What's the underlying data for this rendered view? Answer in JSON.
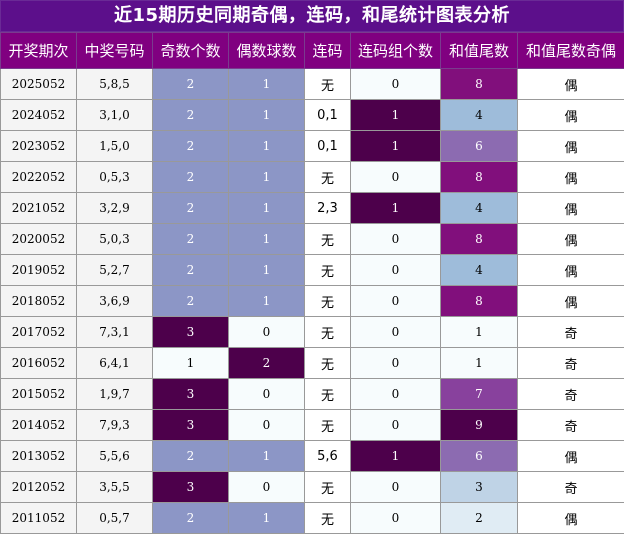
{
  "title": "近15期历史同期奇偶，连码，和尾统计图表分析",
  "headers": [
    "开奖期次",
    "中奖号码",
    "奇数个数",
    "偶数球数",
    "连码",
    "连码组个数",
    "和值尾数",
    "和值尾数奇偶"
  ],
  "rows": [
    {
      "period": "2025052",
      "numbers": "5,8,5",
      "odd": "2",
      "even": "1",
      "consec": "无",
      "groups": "0",
      "tail": "8",
      "parity": "偶"
    },
    {
      "period": "2024052",
      "numbers": "3,1,0",
      "odd": "2",
      "even": "1",
      "consec": "0,1",
      "groups": "1",
      "tail": "4",
      "parity": "偶"
    },
    {
      "period": "2023052",
      "numbers": "1,5,0",
      "odd": "2",
      "even": "1",
      "consec": "0,1",
      "groups": "1",
      "tail": "6",
      "parity": "偶"
    },
    {
      "period": "2022052",
      "numbers": "0,5,3",
      "odd": "2",
      "even": "1",
      "consec": "无",
      "groups": "0",
      "tail": "8",
      "parity": "偶"
    },
    {
      "period": "2021052",
      "numbers": "3,2,9",
      "odd": "2",
      "even": "1",
      "consec": "2,3",
      "groups": "1",
      "tail": "4",
      "parity": "偶"
    },
    {
      "period": "2020052",
      "numbers": "5,0,3",
      "odd": "2",
      "even": "1",
      "consec": "无",
      "groups": "0",
      "tail": "8",
      "parity": "偶"
    },
    {
      "period": "2019052",
      "numbers": "5,2,7",
      "odd": "2",
      "even": "1",
      "consec": "无",
      "groups": "0",
      "tail": "4",
      "parity": "偶"
    },
    {
      "period": "2018052",
      "numbers": "3,6,9",
      "odd": "2",
      "even": "1",
      "consec": "无",
      "groups": "0",
      "tail": "8",
      "parity": "偶"
    },
    {
      "period": "2017052",
      "numbers": "7,3,1",
      "odd": "3",
      "even": "0",
      "consec": "无",
      "groups": "0",
      "tail": "1",
      "parity": "奇"
    },
    {
      "period": "2016052",
      "numbers": "6,4,1",
      "odd": "1",
      "even": "2",
      "consec": "无",
      "groups": "0",
      "tail": "1",
      "parity": "奇"
    },
    {
      "period": "2015052",
      "numbers": "1,9,7",
      "odd": "3",
      "even": "0",
      "consec": "无",
      "groups": "0",
      "tail": "7",
      "parity": "奇"
    },
    {
      "period": "2014052",
      "numbers": "7,9,3",
      "odd": "3",
      "even": "0",
      "consec": "无",
      "groups": "0",
      "tail": "9",
      "parity": "奇"
    },
    {
      "period": "2013052",
      "numbers": "5,5,6",
      "odd": "2",
      "even": "1",
      "consec": "5,6",
      "groups": "1",
      "tail": "6",
      "parity": "偶"
    },
    {
      "period": "2012052",
      "numbers": "3,5,5",
      "odd": "3",
      "even": "0",
      "consec": "无",
      "groups": "0",
      "tail": "3",
      "parity": "奇"
    },
    {
      "period": "2011052",
      "numbers": "0,5,7",
      "odd": "2",
      "even": "1",
      "consec": "无",
      "groups": "0",
      "tail": "2",
      "parity": "偶"
    }
  ],
  "colors": {
    "header_bg": "#800080",
    "title_bg": "#5c0f8b",
    "count_mid": "#8c96c6",
    "count_dark": "#4d004b",
    "count_light": "#f7fcfd",
    "tail_scale": {
      "1": "#f7fcfd",
      "2": "#e0ecf4",
      "3": "#bfd3e6",
      "4": "#9ebcda",
      "6": "#8c6bb1",
      "7": "#88419d",
      "8": "#810f7c",
      "9": "#4d004b"
    }
  }
}
